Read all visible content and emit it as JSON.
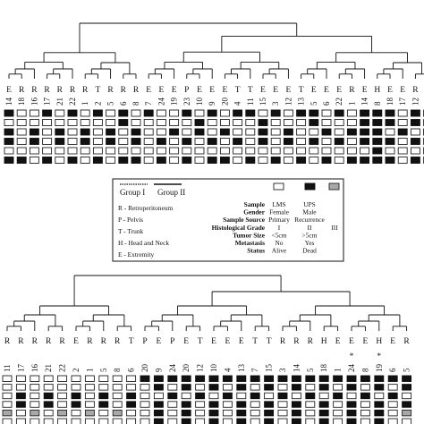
{
  "top": {
    "site_labels": [
      "E",
      "R",
      "R",
      "R",
      "R",
      "R",
      "R",
      "T",
      "R",
      "R",
      "R",
      "E",
      "E",
      "E",
      "P",
      "E",
      "E",
      "E",
      "T",
      "T",
      "E",
      "E",
      "E",
      "T",
      "E",
      "E",
      "E",
      "R",
      "E",
      "H",
      "E",
      "E",
      "R",
      "R"
    ],
    "case_numbers": [
      "14",
      "18",
      "16",
      "17",
      "21",
      "22",
      "1",
      "2",
      "5",
      "6",
      "8",
      "7",
      "24",
      "19",
      "23",
      "10",
      "9",
      "20",
      "4",
      "11",
      "15",
      "3",
      "12",
      "13",
      "5",
      "6",
      "22",
      "1",
      "14",
      "8",
      "18",
      "17",
      "12",
      "16"
    ],
    "asterisk_cols": [
      28
    ],
    "rows": [
      "bwwbwbwbwbwbwwbwbwbbwbwbbwbwbbbwbw",
      "wwwwwwwwwbwwwwwbwwwwbwwwbwwwbbbwbw",
      "bwbwbwbwbwbwwbwbwbwwbwbwwbwbbbwbwb",
      "bwbwbwbwbwbwbwbwbwbwbwbwbwbwbbbwbw",
      "wwwwwwwwwwwwwwwwwwwwwwwwwwwwwbwwww",
      "bbwbwbwbwbbwbwbwbbwbwbwbwbwbbbbwbw"
    ]
  },
  "bottom": {
    "site_labels": [
      "R",
      "R",
      "R",
      "R",
      "R",
      "E",
      "R",
      "R",
      "R",
      "T",
      "P",
      "E",
      "P",
      "E",
      "T",
      "E",
      "E",
      "E",
      "T",
      "T",
      "R",
      "R",
      "R",
      "H",
      "E",
      "E",
      "E",
      "H",
      "E",
      "R"
    ],
    "case_numbers": [
      "11",
      "17",
      "16",
      "21",
      "22",
      "2",
      "1",
      "5",
      "8",
      "6",
      "20",
      "9",
      "24",
      "20",
      "12",
      "10",
      "4",
      "13",
      "7",
      "15",
      "3",
      "14",
      "5",
      "18",
      "1",
      "24",
      "8",
      "19",
      "6",
      "5"
    ],
    "asterisk_cols": [
      25,
      27
    ],
    "rows": [
      "wwwwwwwwwwbbbbbbbbbbbbbbbbbbbb",
      "wwwwwwwwwwwbwbwbwbwbwbwbwbwbwb",
      "wbwbwbwbwbwwbwbwbwbwbwbwbwbwbw",
      "wbwbwbwbwbwbwbwbwbwbwbwbwbwbwb",
      "gwgwgwgwgwwbwbwbwbwbwbwbwbwbwg",
      "wwwwwwwwwwwbwbwbwbwbwbwbwbwbww"
    ]
  },
  "legend": {
    "group_labels": [
      "Group I",
      "Group II"
    ],
    "sites": [
      "R - Retroperitoneum",
      "P - Pelvis",
      "T - Trunk",
      "H - Head and Neck",
      "E - Extremity"
    ],
    "attributes": [
      {
        "name": "Sample",
        "values": [
          "LMS",
          "UPS"
        ]
      },
      {
        "name": "Gender",
        "values": [
          "Female",
          "Male"
        ]
      },
      {
        "name": "Sample Source",
        "values": [
          "Primary",
          "Recurrence"
        ]
      },
      {
        "name": "Histological Grade",
        "values": [
          "I",
          "II",
          "III"
        ]
      },
      {
        "name": "Tumor Size",
        "values": [
          "<5cm",
          ">5cm"
        ]
      },
      {
        "name": "Metastasis",
        "values": [
          "No",
          "Yes"
        ]
      },
      {
        "name": "Status",
        "values": [
          "Alive",
          "Dead"
        ]
      }
    ]
  }
}
